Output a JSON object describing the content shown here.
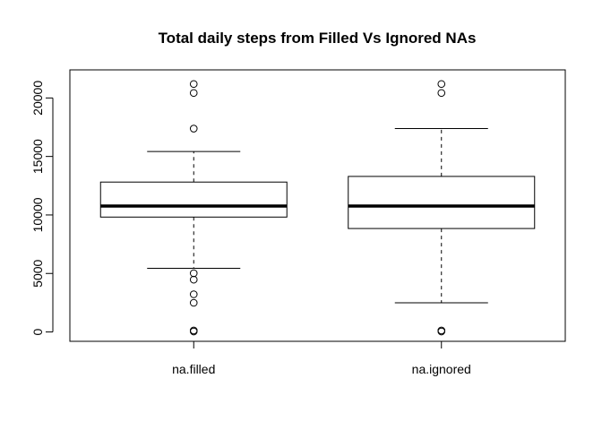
{
  "chart_data": {
    "type": "boxplot",
    "title": "Total daily steps from Filled Vs Ignored NAs",
    "xlabel": "",
    "ylabel": "",
    "ylim": [
      -800,
      22400
    ],
    "yticks": [
      0,
      5000,
      10000,
      15000,
      20000
    ],
    "categories": [
      "na.filled",
      "na.ignored"
    ],
    "boxes": [
      {
        "name": "na.filled",
        "whisker_low": 5441,
        "q1": 9819,
        "median": 10766,
        "q3": 12811,
        "whisker_high": 15420,
        "outliers": [
          21194,
          20427,
          17382,
          5018,
          4472,
          3219,
          2492,
          126,
          41
        ]
      },
      {
        "name": "na.ignored",
        "whisker_low": 2492,
        "q1": 8841,
        "median": 10765,
        "q3": 13294,
        "whisker_high": 17382,
        "outliers": [
          21194,
          20427,
          126,
          41
        ]
      }
    ],
    "grid": false,
    "legend": "none"
  }
}
